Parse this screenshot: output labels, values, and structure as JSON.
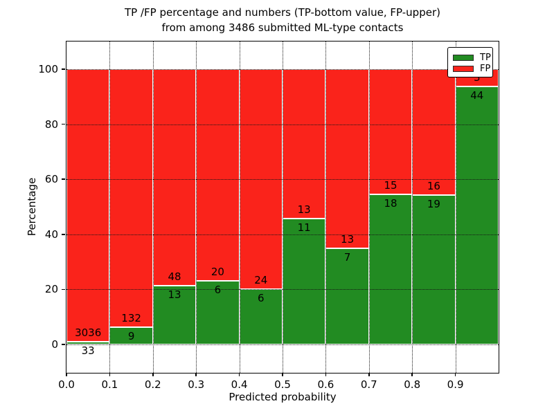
{
  "figure": {
    "title_line1": "TP /FP percentage and numbers (TP-bottom value, FP-upper)",
    "title_line2": "from among 3486 submitted ML-type contacts"
  },
  "chart_data": {
    "type": "bar",
    "subtype": "stacked-percentage",
    "title": "TP /FP percentage and numbers (TP-bottom value, FP-upper)\nfrom among 3486 submitted ML-type contacts",
    "xlabel": "Predicted probability",
    "ylabel": "Percentage",
    "total_contacts": 3486,
    "bin_width": 0.1,
    "bin_starts": [
      0.0,
      0.1,
      0.2,
      0.3,
      0.4,
      0.5,
      0.6,
      0.7,
      0.8,
      0.9
    ],
    "series": [
      {
        "name": "TP",
        "color": "#228b22",
        "values": [
          33,
          9,
          13,
          6,
          6,
          11,
          7,
          18,
          19,
          44
        ]
      },
      {
        "name": "FP",
        "color": "#fa231b",
        "values": [
          3036,
          132,
          48,
          20,
          24,
          13,
          13,
          15,
          16,
          3
        ]
      }
    ],
    "tp_percentages": [
      1.1,
      6.4,
      21.3,
      23.1,
      20.0,
      45.8,
      35.0,
      54.5,
      54.3,
      93.6
    ],
    "xticks": [
      "0.0",
      "0.1",
      "0.2",
      "0.3",
      "0.4",
      "0.5",
      "0.6",
      "0.7",
      "0.8",
      "0.9"
    ],
    "yticks": [
      0,
      20,
      40,
      60,
      80,
      100
    ],
    "xlim": [
      0.0,
      1.0
    ],
    "ylim": [
      -10.3,
      110
    ],
    "grid": {
      "visible": true,
      "style": "dotted",
      "above_bars": true
    },
    "legend": {
      "position": "upper right",
      "entries": [
        {
          "label": "TP",
          "color": "#228b22"
        },
        {
          "label": "FP",
          "color": "#fa231b"
        }
      ]
    },
    "annotation_rule": "FP count printed above green/red boundary, TP count printed below it"
  }
}
